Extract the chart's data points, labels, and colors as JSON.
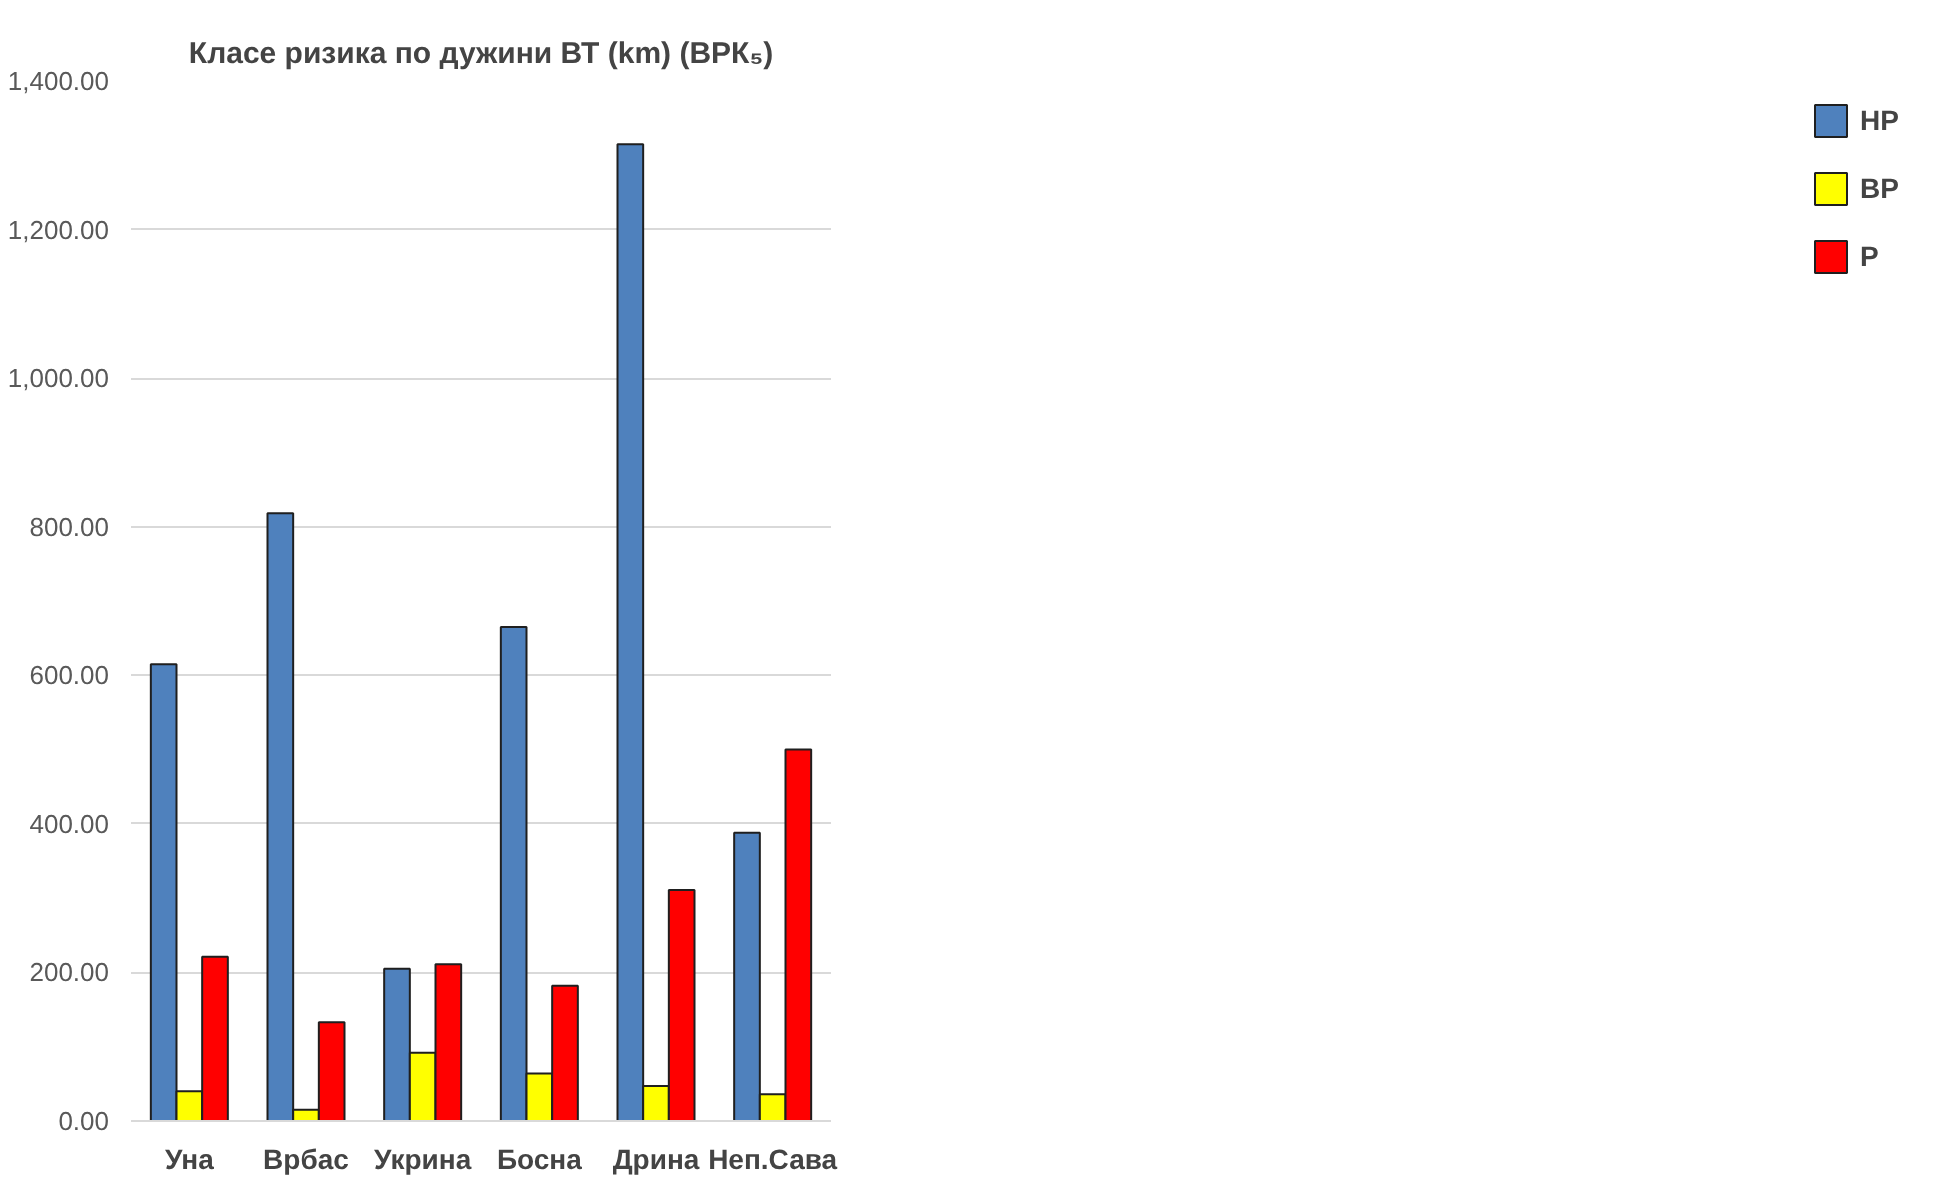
{
  "chart_data": {
    "type": "bar",
    "title": "Класе ризика по дужини ВТ (km) (ВРК₅)",
    "categories": [
      "Уна",
      "Врбас",
      "Укрина",
      "Босна",
      "Дрина",
      "Неп.Сава"
    ],
    "series": [
      {
        "name": "НР",
        "color": "#4f81bd",
        "values": [
          615,
          818,
          205,
          665,
          1315,
          388
        ]
      },
      {
        "name": "ВР",
        "color": "#ffff00",
        "values": [
          40,
          15,
          92,
          64,
          47,
          36
        ]
      },
      {
        "name": "Р",
        "color": "#ff0000",
        "values": [
          221,
          133,
          211,
          182,
          311,
          500
        ]
      }
    ],
    "ylim": [
      0,
      1400
    ],
    "yticks": [
      {
        "value": 0,
        "label": "0.00"
      },
      {
        "value": 200,
        "label": "200.00"
      },
      {
        "value": 400,
        "label": "400.00"
      },
      {
        "value": 600,
        "label": "600.00"
      },
      {
        "value": 800,
        "label": "800.00"
      },
      {
        "value": 1000,
        "label": "1,000.00"
      },
      {
        "value": 1200,
        "label": "1,200.00"
      },
      {
        "value": 1400,
        "label": "1,400.00"
      }
    ],
    "grid": "y",
    "legend": "right"
  }
}
